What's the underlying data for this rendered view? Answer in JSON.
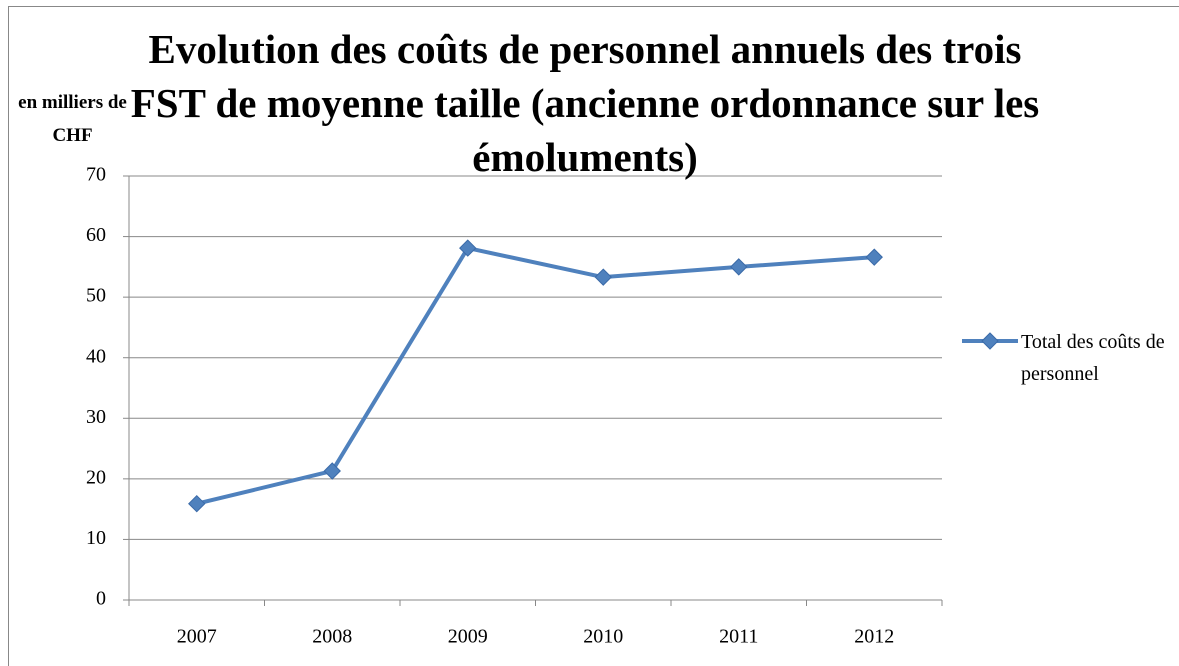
{
  "chart_data": {
    "type": "line",
    "title": "Evolution des coûts de personnel annuels des trois FST de moyenne taille (ancienne ordonnance sur les émoluments)",
    "y_axis_label": "en milliers de CHF",
    "categories": [
      "2007",
      "2008",
      "2009",
      "2010",
      "2011",
      "2012"
    ],
    "series": [
      {
        "name": "Total des coûts de personnel",
        "color": "#4f81bd",
        "values": [
          15.9,
          21.3,
          58.1,
          53.3,
          55.0,
          56.6
        ]
      }
    ],
    "ylim": [
      0,
      70
    ],
    "yticks": [
      0,
      10,
      20,
      30,
      40,
      50,
      60,
      70
    ],
    "grid": true,
    "legend": "right"
  }
}
